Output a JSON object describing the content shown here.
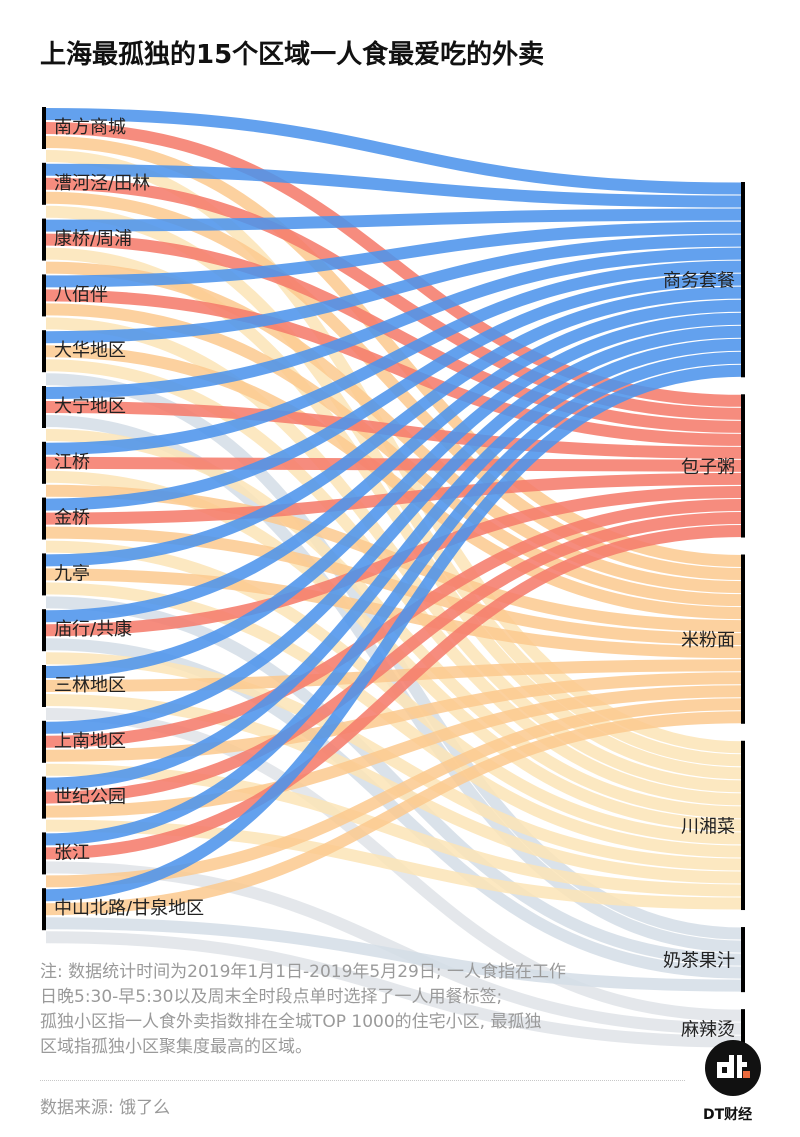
{
  "title": "上海最孤独的15个区域一人食最爱吃的外卖",
  "chart_data": {
    "type": "sankey",
    "title": "上海最孤独的15个区域一人食最爱吃的外卖",
    "sources": [
      "南方商城",
      "漕河泾/田林",
      "康桥/周浦",
      "八佰伴",
      "大华地区",
      "大宁地区",
      "江桥",
      "金桥",
      "九亭",
      "庙行/共康",
      "三林地区",
      "上南地区",
      "世纪公园",
      "张江",
      "中山北路/甘泉地区"
    ],
    "targets": [
      "商务套餐",
      "包子粥",
      "米粉面",
      "川湘菜",
      "奶茶果汁",
      "麻辣烫"
    ],
    "target_colors": {
      "商务套餐": "#4d94ec",
      "包子粥": "#f57c6c",
      "米粉面": "#fbc98e",
      "川湘菜": "#fce4b6",
      "奶茶果汁": "#d3dde6",
      "麻辣烫": "#dfe3e7"
    },
    "links": [
      {
        "source": "南方商城",
        "targets": [
          "商务套餐",
          "包子粥",
          "米粉面",
          "川湘菜"
        ]
      },
      {
        "source": "漕河泾/田林",
        "targets": [
          "商务套餐",
          "包子粥",
          "米粉面",
          "川湘菜"
        ]
      },
      {
        "source": "康桥/周浦",
        "targets": [
          "商务套餐",
          "包子粥",
          "川湘菜",
          "米粉面"
        ]
      },
      {
        "source": "八佰伴",
        "targets": [
          "商务套餐",
          "包子粥",
          "米粉面",
          "川湘菜"
        ]
      },
      {
        "source": "大华地区",
        "targets": [
          "商务套餐",
          "米粉面",
          "川湘菜",
          "奶茶果汁"
        ]
      },
      {
        "source": "大宁地区",
        "targets": [
          "商务套餐",
          "包子粥",
          "奶茶果汁",
          "川湘菜"
        ]
      },
      {
        "source": "江桥",
        "targets": [
          "商务套餐",
          "包子粥",
          "川湘菜",
          "米粉面"
        ]
      },
      {
        "source": "金桥",
        "targets": [
          "商务套餐",
          "包子粥",
          "米粉面",
          "川湘菜"
        ]
      },
      {
        "source": "九亭",
        "targets": [
          "商务套餐",
          "米粉面",
          "川湘菜",
          "奶茶果汁"
        ]
      },
      {
        "source": "庙行/共康",
        "targets": [
          "商务套餐",
          "包子粥",
          "奶茶果汁",
          "川湘菜"
        ]
      },
      {
        "source": "三林地区",
        "targets": [
          "商务套餐",
          "米粉面",
          "川湘菜",
          "麻辣烫"
        ]
      },
      {
        "source": "上南地区",
        "targets": [
          "商务套餐",
          "包子粥",
          "米粉面",
          "川湘菜"
        ]
      },
      {
        "source": "世纪公园",
        "targets": [
          "商务套餐",
          "包子粥",
          "米粉面",
          "川湘菜"
        ]
      },
      {
        "source": "张江",
        "targets": [
          "商务套餐",
          "包子粥",
          "麻辣烫",
          "米粉面"
        ]
      },
      {
        "source": "中山北路/甘泉地区",
        "targets": [
          "商务套餐",
          "米粉面",
          "奶茶果汁",
          "麻辣烫"
        ]
      }
    ],
    "link_value": 1,
    "xlabel": "",
    "ylabel": ""
  },
  "notes": [
    "注: 数据统计时间为2019年1月1日-2019年5月29日; 一人食指在工作",
    "日晚5:30-早5:30以及周末全时段点单时选择了一人用餐标签;",
    "孤独小区指一人食外卖指数排在全城TOP 1000的住宅小区, 最孤独",
    "区域指孤独小区聚集度最高的区域。"
  ],
  "source": "数据来源: 饿了么",
  "brand": "DT财经"
}
